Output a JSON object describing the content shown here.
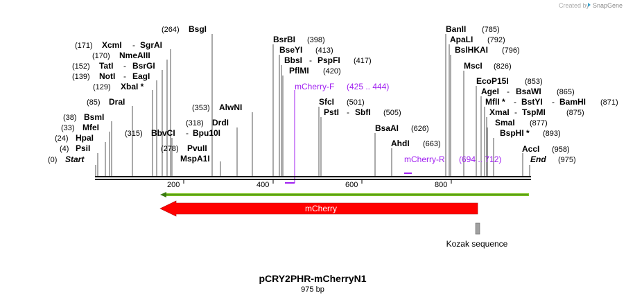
{
  "header": {
    "credit_text": "Created by",
    "brand": "SnapGene"
  },
  "map": {
    "title": "pCRY2PHR-mCherryN1",
    "length_label": "975 bp",
    "ticks": [
      "200",
      "400",
      "600",
      "800"
    ]
  },
  "features": {
    "mcherry": {
      "label": "mCherry"
    },
    "kozak": {
      "label": "Kozak sequence"
    }
  },
  "primers": {
    "forward": {
      "name": "mCherry-F",
      "range": "(425 .. 444)"
    },
    "reverse": {
      "name": "mCherry-R",
      "range": "(694 .. 712)"
    }
  },
  "sites": {
    "start": {
      "pos": "(0)",
      "name": "Start"
    },
    "psii": {
      "pos": "(4)",
      "name": "PsiI"
    },
    "hpai": {
      "pos": "(24)",
      "name": "HpaI"
    },
    "mfei": {
      "pos": "(33)",
      "name": "MfeI"
    },
    "bsmi": {
      "pos": "(38)",
      "name": "BsmI"
    },
    "drai": {
      "pos": "(85)",
      "name": "DraI"
    },
    "xbai": {
      "pos": "(129)",
      "name": "XbaI *"
    },
    "noti": {
      "pos": "(139)",
      "name": "NotI",
      "partner": "EagI"
    },
    "tati": {
      "pos": "(152)",
      "name": "TatI",
      "partner": "BsrGI"
    },
    "nmeaiii": {
      "pos": "(170)",
      "name": "NmeAIII"
    },
    "xcmi": {
      "pos": "(171)",
      "name": "XcmI",
      "partner": "SgrAI"
    },
    "bsgi": {
      "pos": "(264)",
      "name": "BsgI"
    },
    "bbvci": {
      "pos": "(315)",
      "name": "BbvCI",
      "partner": "Bpu10I"
    },
    "drdi": {
      "pos": "(318)",
      "name": "DrdI"
    },
    "pvuii": {
      "pos": "(278)",
      "name": "PvuII"
    },
    "mspa1i": {
      "name": "MspA1I"
    },
    "alwni": {
      "pos": "(353)",
      "name": "AlwNI"
    },
    "bsrbi": {
      "pos": "(398)",
      "name": "BsrBI"
    },
    "bseyi": {
      "pos": "(413)",
      "name": "BseYI"
    },
    "bbsi": {
      "pos": "(417)",
      "name": "BbsI",
      "partner": "PspFI"
    },
    "pflmi": {
      "pos": "(420)",
      "name": "PflMI"
    },
    "sfci": {
      "pos": "(501)",
      "name": "SfcI"
    },
    "psti": {
      "pos": "(505)",
      "name": "PstI",
      "partner": "SbfI"
    },
    "bsaai": {
      "pos": "(626)",
      "name": "BsaAI"
    },
    "ahdi": {
      "pos": "(663)",
      "name": "AhdI"
    },
    "banii": {
      "pos": "(785)",
      "name": "BanII"
    },
    "apali": {
      "pos": "(792)",
      "name": "ApaLI"
    },
    "bslhkai": {
      "pos": "(796)",
      "name": "BslHKAI"
    },
    "msci": {
      "pos": "(826)",
      "name": "MscI"
    },
    "ecop15i": {
      "pos": "(853)",
      "name": "EcoP15I"
    },
    "agei": {
      "pos": "(865)",
      "name": "AgeI",
      "partner": "BsaWI"
    },
    "mfli": {
      "pos": "(871)",
      "name": "MflI *",
      "partner": "BstYI",
      "partner2": "BamHI"
    },
    "xmai": {
      "pos": "(875)",
      "name": "XmaI",
      "partner": "TspMI"
    },
    "smai": {
      "pos": "(877)",
      "name": "SmaI"
    },
    "bsphi": {
      "pos": "(893)",
      "name": "BspHI *"
    },
    "acci": {
      "pos": "(958)",
      "name": "AccI"
    },
    "end": {
      "pos": "(975)",
      "name": "End"
    }
  },
  "colors": {
    "feature": "#ff0000",
    "orf": "#7fc424",
    "primer": "#a020f0",
    "kozak": "#a0a0a0",
    "brand": "#3aa0c8"
  }
}
